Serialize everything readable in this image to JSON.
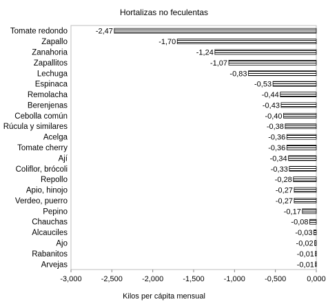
{
  "chart_data": {
    "type": "bar",
    "orientation": "horizontal",
    "title": "Hortalizas no feculentas",
    "xlabel": "Kilos per cápita mensual",
    "ylabel": "",
    "xlim": [
      -3.0,
      0.0
    ],
    "x_ticks": [
      -3.0,
      -2.5,
      -2.0,
      -1.5,
      -1.0,
      -0.5,
      0.0
    ],
    "x_tick_labels": [
      "-3,000",
      "-2,500",
      "-2,000",
      "-1,500",
      "-1,000",
      "-0,500",
      "0,000"
    ],
    "grid": false,
    "legend": "none",
    "bar_pattern": "horizontal-stripes",
    "categories": [
      "Tomate redondo",
      "Zapallo",
      "Zanahoria",
      "Zapallitos",
      "Lechuga",
      "Espinaca",
      "Remolacha",
      "Berenjenas",
      "Cebolla común",
      "Rúcula y similares",
      "Acelga",
      "Tomate cherry",
      "Ají",
      "Coliflor, brócoli",
      "Repollo",
      "Apio, hinojo",
      "Verdeo, puerro",
      "Pepino",
      "Chauchas",
      "Alcauciles",
      "Ajo",
      "Rabanitos",
      "Arvejas"
    ],
    "values": [
      -2.47,
      -1.7,
      -1.24,
      -1.07,
      -0.83,
      -0.53,
      -0.44,
      -0.43,
      -0.4,
      -0.38,
      -0.36,
      -0.36,
      -0.34,
      -0.33,
      -0.28,
      -0.27,
      -0.27,
      -0.17,
      -0.08,
      -0.03,
      -0.02,
      -0.01,
      -0.01
    ],
    "value_labels": [
      "-2,47",
      "-1,70",
      "-1,24",
      "-1,07",
      "-0,83",
      "-0,53",
      "-0,44",
      "-0,43",
      "-0,40",
      "-0,38",
      "-0,36",
      "-0,36",
      "-0,34",
      "-0,33",
      "-0,28",
      "-0,27",
      "-0,27",
      "-0,17",
      "-0,08",
      "-0,03",
      "-0,02",
      "-0,01",
      "-0,01"
    ]
  }
}
